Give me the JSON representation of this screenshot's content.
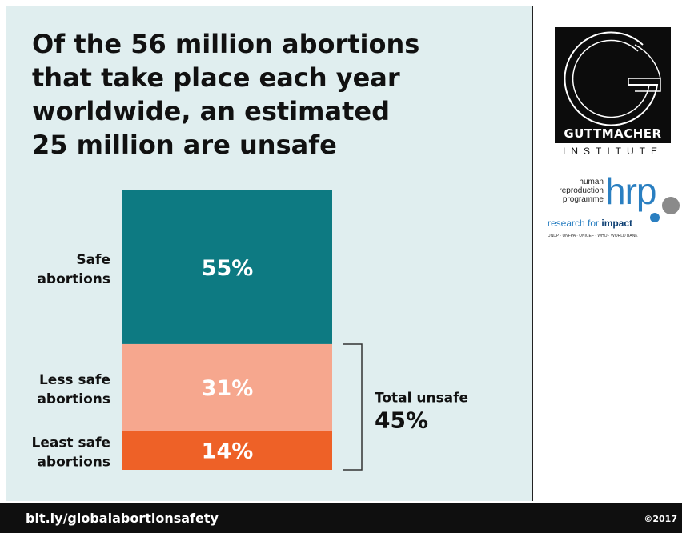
{
  "title_lines": [
    "Of the 56 million abortions",
    "that take place each year",
    "worldwide, an estimated",
    "25 million are unsafe"
  ],
  "chart_data": {
    "type": "bar",
    "stacked": true,
    "categories": [
      "Safe abortions",
      "Less safe abortions",
      "Least safe abortions"
    ],
    "category_lines": [
      [
        "Safe",
        "abortions"
      ],
      [
        "Less safe",
        "abortions"
      ],
      [
        "Least safe",
        "abortions"
      ]
    ],
    "values": [
      55,
      31,
      14
    ],
    "labels": [
      "55%",
      "31%",
      "14%"
    ],
    "colors": [
      "#0d7a82",
      "#f6a78e",
      "#ee6127"
    ],
    "total": 100,
    "bracket": {
      "label_line1": "Total unsafe",
      "label_line2": "45%",
      "covers": [
        "Less safe abortions",
        "Least safe abortions"
      ]
    }
  },
  "logos": {
    "guttmacher_name": "GUTTMACHER",
    "guttmacher_sub": "INSTITUTE",
    "hrp_small": [
      "human",
      "reproduction",
      "programme"
    ],
    "hrp_big": "hrp",
    "hrp_tagline_1": "research for ",
    "hrp_tagline_2": "impact",
    "hrp_partners": "UNDP · UNFPA · UNICEF · WHO · WORLD BANK"
  },
  "footer": {
    "link": "bit.ly/globalabortionsafety",
    "copyright": "©2017"
  },
  "colors": {
    "panel_bg": "#e0eeef",
    "footer_bg": "#0f0f0f",
    "text": "#111111"
  }
}
